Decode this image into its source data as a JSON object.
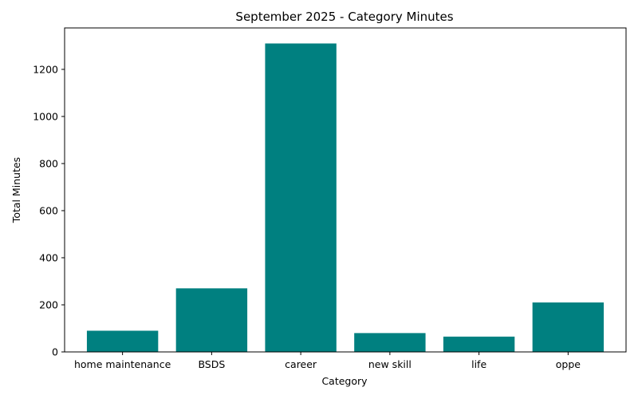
{
  "chart_data": {
    "type": "bar",
    "title": "September 2025 - Category Minutes",
    "xlabel": "Category",
    "ylabel": "Total Minutes",
    "categories": [
      "home maintenance",
      "BSDS",
      "career",
      "new skill",
      "life",
      "oppe"
    ],
    "values": [
      90,
      270,
      1310,
      80,
      65,
      210
    ],
    "ylim": [
      0,
      1376
    ],
    "yticks": [
      0,
      200,
      400,
      600,
      800,
      1000,
      1200
    ],
    "bar_color": "#008080",
    "grid": false,
    "legend": "none"
  }
}
